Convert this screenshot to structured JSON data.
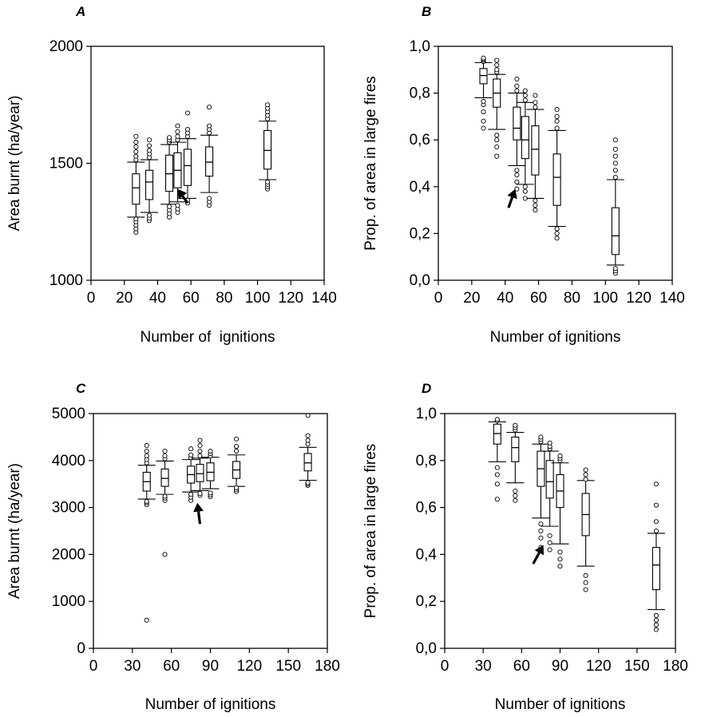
{
  "chart_data": [
    {
      "id": "A",
      "type": "box",
      "panel_label": "A",
      "xlabel": "Number of  ignitions",
      "ylabel": "Area burnt (ha/year)",
      "xlim": [
        0,
        140
      ],
      "ylim": [
        1000,
        2000
      ],
      "xticks": [
        0,
        20,
        40,
        60,
        80,
        100,
        120,
        140
      ],
      "yticks": [
        1000,
        1500,
        2000
      ],
      "ytick_labels": [
        "1000",
        "1500",
        "2000"
      ],
      "grid": false,
      "arrow": {
        "tip": [
          52,
          1390
        ],
        "tail": [
          58,
          1330
        ]
      },
      "boxes": [
        {
          "x": 27,
          "q1": 1325,
          "median": 1395,
          "q3": 1455,
          "whisker_low": 1270,
          "whisker_high": 1505,
          "outliers": [
            1205,
            1220,
            1235,
            1250,
            1262,
            1515,
            1530,
            1550,
            1570,
            1590,
            1615
          ]
        },
        {
          "x": 35,
          "q1": 1345,
          "median": 1420,
          "q3": 1470,
          "whisker_low": 1290,
          "whisker_high": 1515,
          "outliers": [
            1255,
            1265,
            1278,
            1525,
            1540,
            1555,
            1575,
            1600
          ]
        },
        {
          "x": 47,
          "q1": 1380,
          "median": 1455,
          "q3": 1535,
          "whisker_low": 1325,
          "whisker_high": 1580,
          "outliers": [
            1270,
            1285,
            1300,
            1315,
            1590,
            1600,
            1610
          ]
        },
        {
          "x": 52,
          "q1": 1395,
          "median": 1470,
          "q3": 1545,
          "whisker_low": 1335,
          "whisker_high": 1590,
          "outliers": [
            1290,
            1305,
            1320,
            1600,
            1615,
            1635,
            1660
          ]
        },
        {
          "x": 58,
          "q1": 1405,
          "median": 1490,
          "q3": 1560,
          "whisker_low": 1350,
          "whisker_high": 1605,
          "outliers": [
            1330,
            1342,
            1615,
            1630,
            1645,
            1715
          ]
        },
        {
          "x": 71,
          "q1": 1445,
          "median": 1505,
          "q3": 1570,
          "whisker_low": 1375,
          "whisker_high": 1620,
          "outliers": [
            1320,
            1335,
            1350,
            1630,
            1645,
            1660,
            1740
          ]
        },
        {
          "x": 106,
          "q1": 1475,
          "median": 1555,
          "q3": 1640,
          "whisker_low": 1430,
          "whisker_high": 1680,
          "outliers": [
            1390,
            1400,
            1410,
            1420,
            1690,
            1705,
            1720,
            1735,
            1750
          ]
        }
      ]
    },
    {
      "id": "B",
      "type": "box",
      "panel_label": "B",
      "xlabel": "Number of ignitions",
      "ylabel": "Prop. of area in large fires",
      "xlim": [
        0,
        140
      ],
      "ylim": [
        0,
        1
      ],
      "xticks": [
        0,
        20,
        40,
        60,
        80,
        100,
        120,
        140
      ],
      "yticks": [
        0,
        0.2,
        0.4,
        0.6,
        0.8,
        1.0
      ],
      "ytick_labels": [
        "0,0",
        "0,2",
        "0,4",
        "0,6",
        "0,8",
        "1,0"
      ],
      "grid": false,
      "arrow": {
        "tip": [
          46,
          0.39
        ],
        "tail": [
          42,
          0.31
        ]
      },
      "boxes": [
        {
          "x": 27,
          "q1": 0.84,
          "median": 0.875,
          "q3": 0.905,
          "whisker_low": 0.78,
          "whisker_high": 0.93,
          "outliers": [
            0.65,
            0.68,
            0.72,
            0.75,
            0.765,
            0.935,
            0.94,
            0.945,
            0.95
          ]
        },
        {
          "x": 35,
          "q1": 0.74,
          "median": 0.8,
          "q3": 0.86,
          "whisker_low": 0.645,
          "whisker_high": 0.88,
          "outliers": [
            0.53,
            0.57,
            0.6,
            0.62,
            0.89,
            0.9,
            0.92,
            0.94
          ]
        },
        {
          "x": 47,
          "q1": 0.6,
          "median": 0.65,
          "q3": 0.74,
          "whisker_low": 0.49,
          "whisker_high": 0.8,
          "outliers": [
            0.39,
            0.42,
            0.45,
            0.47,
            0.81,
            0.83,
            0.86
          ]
        },
        {
          "x": 52,
          "q1": 0.52,
          "median": 0.6,
          "q3": 0.7,
          "whisker_low": 0.41,
          "whisker_high": 0.76,
          "outliers": [
            0.35,
            0.38,
            0.4,
            0.77,
            0.79,
            0.81
          ]
        },
        {
          "x": 58,
          "q1": 0.45,
          "median": 0.56,
          "q3": 0.66,
          "whisker_low": 0.35,
          "whisker_high": 0.73,
          "outliers": [
            0.3,
            0.32,
            0.34,
            0.74,
            0.76,
            0.79
          ]
        },
        {
          "x": 71,
          "q1": 0.32,
          "median": 0.44,
          "q3": 0.54,
          "whisker_low": 0.23,
          "whisker_high": 0.64,
          "outliers": [
            0.18,
            0.2,
            0.22,
            0.65,
            0.68,
            0.7,
            0.73
          ]
        },
        {
          "x": 106,
          "q1": 0.11,
          "median": 0.19,
          "q3": 0.31,
          "whisker_low": 0.065,
          "whisker_high": 0.43,
          "outliers": [
            0.03,
            0.04,
            0.05,
            0.44,
            0.47,
            0.5,
            0.53,
            0.56,
            0.6
          ]
        }
      ]
    },
    {
      "id": "C",
      "type": "box",
      "panel_label": "C",
      "xlabel": "Number of ignitions",
      "ylabel": "Area burnt (ha/year)",
      "xlim": [
        0,
        180
      ],
      "ylim": [
        0,
        5000
      ],
      "xticks": [
        0,
        30,
        60,
        90,
        120,
        150,
        180
      ],
      "yticks": [
        0,
        1000,
        2000,
        3000,
        4000,
        5000
      ],
      "ytick_labels": [
        "0",
        "1000",
        "2000",
        "3000",
        "4000",
        "5000"
      ],
      "grid": false,
      "arrow": {
        "tip": [
          80,
          3100
        ],
        "tail": [
          82,
          2650
        ]
      },
      "boxes": [
        {
          "x": 41,
          "q1": 3350,
          "median": 3550,
          "q3": 3750,
          "whisker_low": 3180,
          "whisker_high": 3900,
          "outliers": [
            600,
            3060,
            3100,
            3130,
            3950,
            4020,
            4100,
            4200,
            4320
          ]
        },
        {
          "x": 55,
          "q1": 3450,
          "median": 3620,
          "q3": 3820,
          "whisker_low": 3280,
          "whisker_high": 3990,
          "outliers": [
            2000,
            3150,
            3200,
            3240,
            4040,
            4100,
            4200
          ]
        },
        {
          "x": 75,
          "q1": 3520,
          "median": 3700,
          "q3": 3880,
          "whisker_low": 3330,
          "whisker_high": 4020,
          "outliers": [
            3150,
            3220,
            3280,
            4060,
            4120,
            4250
          ]
        },
        {
          "x": 82,
          "q1": 3550,
          "median": 3720,
          "q3": 3920,
          "whisker_low": 3360,
          "whisker_high": 4050,
          "outliers": [
            3260,
            3300,
            4100,
            4200,
            4320,
            4430
          ]
        },
        {
          "x": 90,
          "q1": 3570,
          "median": 3750,
          "q3": 3950,
          "whisker_low": 3400,
          "whisker_high": 4070,
          "outliers": [
            3230,
            3270,
            3310,
            4100,
            4150,
            4200
          ]
        },
        {
          "x": 110,
          "q1": 3620,
          "median": 3800,
          "q3": 3980,
          "whisker_low": 3450,
          "whisker_high": 4120,
          "outliers": [
            3340,
            3380,
            3420,
            4200,
            4300,
            4460
          ]
        },
        {
          "x": 165,
          "q1": 3780,
          "median": 3950,
          "q3": 4150,
          "whisker_low": 3580,
          "whisker_high": 4280,
          "outliers": [
            3470,
            3500,
            3530,
            4350,
            4430,
            4530,
            4960
          ]
        }
      ]
    },
    {
      "id": "D",
      "type": "box",
      "panel_label": "D",
      "xlabel": "Number of ignitions",
      "ylabel": "Prop. of area in large fires",
      "xlim": [
        0,
        180
      ],
      "ylim": [
        0,
        1
      ],
      "xticks": [
        0,
        30,
        60,
        90,
        120,
        150,
        180
      ],
      "yticks": [
        0,
        0.2,
        0.4,
        0.6,
        0.8,
        1.0
      ],
      "ytick_labels": [
        "0,0",
        "0,2",
        "0,4",
        "0,6",
        "0,8",
        "1,0"
      ],
      "grid": false,
      "arrow": {
        "tip": [
          77,
          0.44
        ],
        "tail": [
          69,
          0.36
        ]
      },
      "boxes": [
        {
          "x": 41,
          "q1": 0.87,
          "median": 0.915,
          "q3": 0.955,
          "whisker_low": 0.795,
          "whisker_high": 0.965,
          "outliers": [
            0.635,
            0.7,
            0.74,
            0.77,
            0.97,
            0.975
          ]
        },
        {
          "x": 55,
          "q1": 0.795,
          "median": 0.855,
          "q3": 0.9,
          "whisker_low": 0.705,
          "whisker_high": 0.92,
          "outliers": [
            0.63,
            0.65,
            0.67,
            0.93,
            0.94,
            0.95
          ]
        },
        {
          "x": 75,
          "q1": 0.69,
          "median": 0.765,
          "q3": 0.84,
          "whisker_low": 0.555,
          "whisker_high": 0.87,
          "outliers": [
            0.43,
            0.47,
            0.5,
            0.53,
            0.88,
            0.89,
            0.9
          ]
        },
        {
          "x": 82,
          "q1": 0.64,
          "median": 0.71,
          "q3": 0.8,
          "whisker_low": 0.52,
          "whisker_high": 0.84,
          "outliers": [
            0.42,
            0.45,
            0.48,
            0.85,
            0.86,
            0.875
          ]
        },
        {
          "x": 90,
          "q1": 0.6,
          "median": 0.67,
          "q3": 0.74,
          "whisker_low": 0.445,
          "whisker_high": 0.79,
          "outliers": [
            0.35,
            0.38,
            0.41,
            0.8,
            0.81,
            0.82
          ]
        },
        {
          "x": 110,
          "q1": 0.48,
          "median": 0.57,
          "q3": 0.66,
          "whisker_low": 0.35,
          "whisker_high": 0.715,
          "outliers": [
            0.25,
            0.28,
            0.31,
            0.72,
            0.74,
            0.76
          ]
        },
        {
          "x": 165,
          "q1": 0.25,
          "median": 0.355,
          "q3": 0.43,
          "whisker_low": 0.165,
          "whisker_high": 0.49,
          "outliers": [
            0.08,
            0.1,
            0.12,
            0.14,
            0.5,
            0.54,
            0.61,
            0.7
          ]
        }
      ]
    }
  ]
}
